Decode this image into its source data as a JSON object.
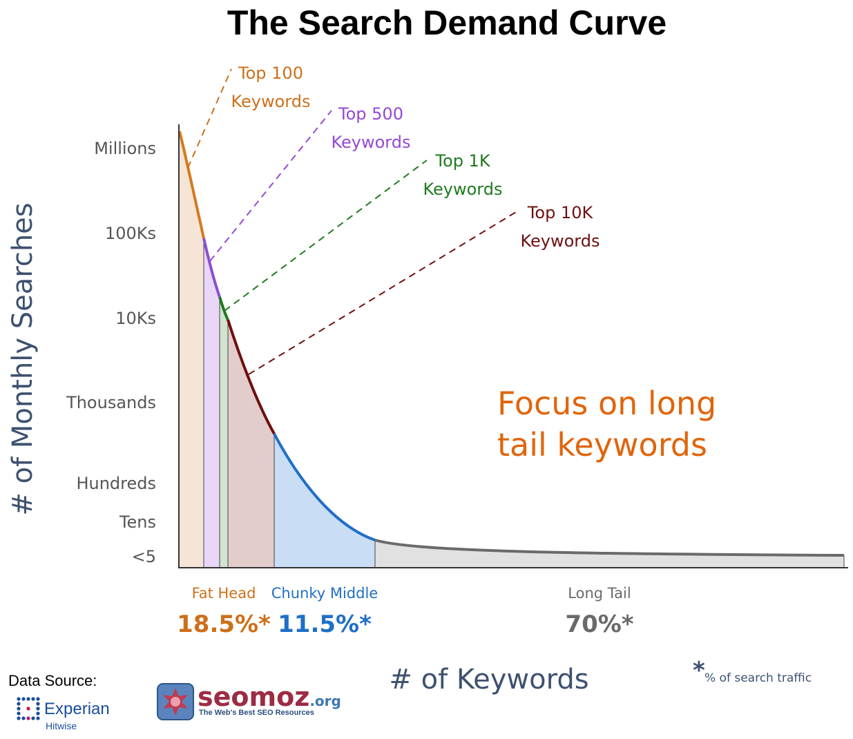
{
  "chart_data": {
    "type": "area",
    "title": "The Search Demand Curve",
    "xlabel": "# of Keywords",
    "ylabel": "# of Monthly Searches",
    "y_ticks": [
      "Millions",
      "100Ks",
      "10Ks",
      "Thousands",
      "Hundreds",
      "Tens",
      "<5"
    ],
    "annotation": "Focus on long tail keywords",
    "annotation_lines": [
      "Focus on long",
      "tail keywords"
    ],
    "callouts": [
      {
        "line1": "Top 100",
        "line2": "Keywords",
        "color": "#cc7019"
      },
      {
        "line1": "Top 500",
        "line2": "Keywords",
        "color": "#9448d6"
      },
      {
        "line1": "Top 1K",
        "line2": "Keywords",
        "color": "#1f7a1f"
      },
      {
        "line1": "Top 10K",
        "line2": "Keywords",
        "color": "#6e0f0f"
      }
    ],
    "segments": [
      {
        "label": "Fat Head",
        "share": "18.5%*",
        "color": "#cc7019"
      },
      {
        "label": "Chunky Middle",
        "share": "11.5%*",
        "color": "#1f6fc7"
      },
      {
        "label": "Long Tail",
        "share": "70%*",
        "color": "#6a6a6a"
      }
    ],
    "curve_colors": {
      "top100": "#d47a1e",
      "top500": "#8a4fcf",
      "top1k": "#1f7a1f",
      "top10k": "#6e0f0f",
      "chunky": "#1f6fc7",
      "tail": "#6a6a6a"
    },
    "footnote_mark": "*",
    "footnote": "% of search traffic"
  },
  "sources": {
    "label": "Data Source:",
    "experian": "Experian",
    "hitwise": "Hitwise",
    "seomoz": "seomoz",
    "seomoz_org": ".org",
    "seomoz_tagline": "The Web's Best SEO Resources"
  }
}
